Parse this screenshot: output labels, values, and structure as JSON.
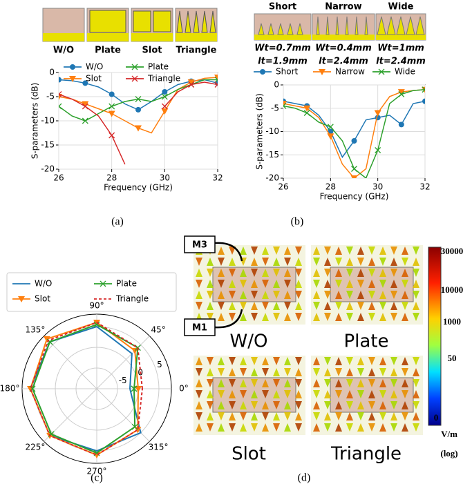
{
  "structures_a": [
    "W/O",
    "Plate",
    "Slot",
    "Triangle"
  ],
  "structures_b": [
    {
      "name": "Short",
      "width": "Wt=0.7mm",
      "length": "lt=1.9mm"
    },
    {
      "name": "Narrow",
      "width": "Wt=0.4mm",
      "length": "lt=2.4mm"
    },
    {
      "name": "Wide",
      "width": "Wt=1mm",
      "length": "lt=2.4mm"
    }
  ],
  "field_maps": {
    "panels": [
      "W/O",
      "Plate",
      "Slot",
      "Triangle"
    ],
    "markers": [
      "M3",
      "M1"
    ],
    "colorbar_labels": [
      "30000",
      "10000",
      "1000",
      "50",
      "0"
    ],
    "unit": "V/m",
    "scale": "(log)"
  },
  "captions": [
    "(a)",
    "(b)",
    "(c)",
    "(d)"
  ],
  "chart_data": [
    {
      "type": "line",
      "xlabel": "Frequency (GHz)",
      "ylabel": "S-parameters (dB)",
      "x": [
        26,
        26.5,
        27,
        27.5,
        28,
        28.5,
        29,
        29.5,
        30,
        30.5,
        31,
        31.5,
        32
      ],
      "xlim": [
        26,
        32
      ],
      "ylim": [
        -20,
        0
      ],
      "xticks": [
        26,
        28,
        30,
        32
      ],
      "yticks": [
        0,
        -5,
        -10,
        -15,
        -20
      ],
      "grid": true,
      "legend_rows": 2,
      "series": [
        {
          "name": "W/O",
          "color": "#1f77b4",
          "marker": "circle",
          "values": [
            -1.5,
            -1.7,
            -2.2,
            -3,
            -4.5,
            -6.5,
            -7.7,
            -6,
            -4,
            -2.5,
            -1.8,
            -1.5,
            -2.2
          ]
        },
        {
          "name": "Slot",
          "color": "#ff7f0e",
          "marker": "tri",
          "values": [
            -5,
            -5.5,
            -6.5,
            -7.5,
            -8.5,
            -10,
            -11.5,
            -12.5,
            -8,
            -3.5,
            -2,
            -1.2,
            -1
          ]
        },
        {
          "name": "Plate",
          "color": "#2ca02c",
          "marker": "x",
          "values": [
            -7,
            -9,
            -10,
            -8.5,
            -7,
            -6,
            -5.5,
            -6,
            -5,
            -3.5,
            -2.5,
            -1.5,
            -1.5
          ]
        },
        {
          "name": "Triangle",
          "color": "#d62728",
          "marker": "x",
          "values": [
            -4.5,
            -5.5,
            -7,
            -9,
            -13,
            -19,
            null,
            null,
            -7,
            -4,
            -2.5,
            -2,
            -2.5
          ]
        }
      ]
    },
    {
      "type": "line",
      "xlabel": "Frequency (GHz)",
      "ylabel": "S-parameters (dB)",
      "x": [
        26,
        26.5,
        27,
        27.5,
        28,
        28.5,
        29,
        29.5,
        30,
        30.5,
        31,
        31.5,
        32
      ],
      "xlim": [
        26,
        32
      ],
      "ylim": [
        -20,
        0
      ],
      "xticks": [
        26,
        28,
        30,
        32
      ],
      "yticks": [
        0,
        -5,
        -10,
        -15,
        -20
      ],
      "grid": true,
      "legend_rows": 1,
      "series": [
        {
          "name": "Short",
          "color": "#1f77b4",
          "marker": "circle",
          "values": [
            -3.5,
            -4,
            -4.5,
            -6.5,
            -10,
            -15.5,
            -12,
            -7.5,
            -7,
            -6.5,
            -8.5,
            -4,
            -3.5
          ]
        },
        {
          "name": "Narrow",
          "color": "#ff7f0e",
          "marker": "tri",
          "values": [
            -4,
            -4.5,
            -5,
            -7,
            -11,
            -17,
            -20,
            -18,
            -6,
            -2.5,
            -1.5,
            -1.2,
            -1
          ]
        },
        {
          "name": "Wide",
          "color": "#2ca02c",
          "marker": "x",
          "values": [
            -4.5,
            -5,
            -6,
            -8,
            -9,
            -12,
            -18,
            -20,
            -14,
            -4,
            -2,
            -1.2,
            -1
          ]
        }
      ]
    },
    {
      "type": "polar",
      "theta": [
        0,
        45,
        90,
        135,
        180,
        225,
        270,
        315,
        360
      ],
      "rlim": [
        -10,
        8
      ],
      "rticks": [
        -5,
        0,
        5
      ],
      "angle_ticks": [
        {
          "value": 0,
          "label": "0°"
        },
        {
          "value": 45,
          "label": "45°"
        },
        {
          "value": 90,
          "label": "90°"
        },
        {
          "value": 135,
          "label": "135°"
        },
        {
          "value": 180,
          "label": "180°"
        },
        {
          "value": 225,
          "label": "225°"
        },
        {
          "value": 270,
          "label": "270°"
        },
        {
          "value": 315,
          "label": "315°"
        }
      ],
      "series": [
        {
          "name": "W/O",
          "color": "#1f77b4",
          "marker": "none",
          "dash": false,
          "values": [
            -2,
            2,
            5,
            6,
            6,
            6,
            5,
            5,
            -2
          ]
        },
        {
          "name": "Slot",
          "color": "#ff7f0e",
          "marker": "tri",
          "dash": false,
          "values": [
            0,
            3,
            6,
            7,
            6,
            6,
            6,
            4,
            0
          ]
        },
        {
          "name": "Plate",
          "color": "#2ca02c",
          "marker": "x",
          "dash": false,
          "values": [
            -1,
            4,
            5.5,
            6,
            5.5,
            5.5,
            5.5,
            3,
            -1
          ]
        },
        {
          "name": "Triangle",
          "color": "#d62728",
          "marker": "none",
          "dash": true,
          "values": [
            1,
            4,
            6,
            6.5,
            6,
            6,
            6,
            4,
            1
          ]
        }
      ]
    }
  ]
}
